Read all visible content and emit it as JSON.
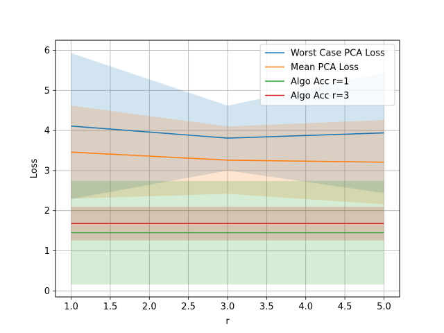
{
  "chart_data": {
    "type": "line",
    "title": "",
    "xlabel": "r",
    "ylabel": "Loss",
    "xlim": [
      0.8,
      5.2
    ],
    "ylim": [
      -0.15,
      6.25
    ],
    "xticks": [
      1.0,
      1.5,
      2.0,
      2.5,
      3.0,
      3.5,
      4.0,
      4.5,
      5.0
    ],
    "xtick_labels": [
      "1.0",
      "1.5",
      "2.0",
      "2.5",
      "3.0",
      "3.5",
      "4.0",
      "4.5",
      "5.0"
    ],
    "yticks": [
      0,
      1,
      2,
      3,
      4,
      5,
      6
    ],
    "ytick_labels": [
      "0",
      "1",
      "2",
      "3",
      "4",
      "5",
      "6"
    ],
    "grid": true,
    "legend_position": "top-right",
    "x": [
      1,
      3,
      5
    ],
    "series": [
      {
        "name": "Worst Case PCA Loss",
        "color": "#1f77b4",
        "values": [
          4.11,
          3.81,
          3.94
        ],
        "band_upper": [
          5.93,
          4.62,
          5.44
        ],
        "band_lower": [
          2.29,
          3.0,
          2.44
        ]
      },
      {
        "name": "Mean PCA Loss",
        "color": "#ff7f0e",
        "values": [
          3.46,
          3.26,
          3.21
        ],
        "band_upper": [
          4.62,
          4.1,
          4.26
        ],
        "band_lower": [
          2.3,
          2.42,
          2.16
        ]
      },
      {
        "name": "Algo Acc r=1",
        "color": "#2ca02c",
        "values": [
          1.45,
          1.45,
          1.45
        ],
        "band_upper": [
          2.74,
          2.74,
          2.74
        ],
        "band_lower": [
          0.16,
          0.16,
          0.16
        ]
      },
      {
        "name": "Algo Acc r=3",
        "color": "#d62728",
        "values": [
          1.68,
          1.68,
          1.68
        ],
        "band_upper": [
          2.1,
          2.1,
          2.1
        ],
        "band_lower": [
          1.26,
          1.26,
          1.26
        ]
      }
    ]
  }
}
